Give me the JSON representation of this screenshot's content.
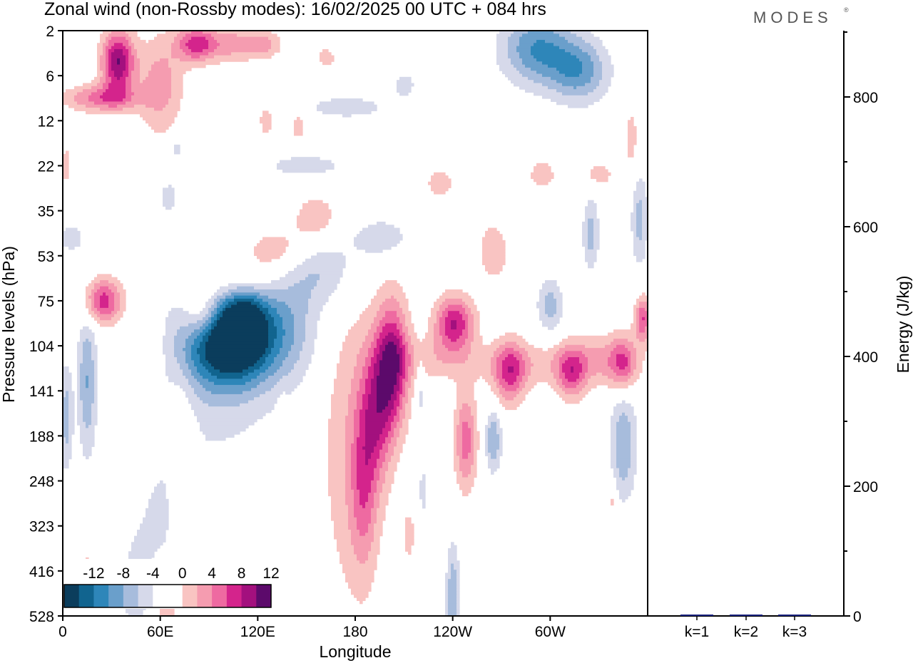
{
  "title": "Zonal wind (non-Rossby modes):  16/02/2025  00 UTC  + 084 hrs",
  "brand": "MODES",
  "brand_mark": "®",
  "chart_data": [
    {
      "type": "heatmap",
      "title": "Zonal wind (non-Rossby modes):  16/02/2025  00 UTC  + 084 hrs",
      "xlabel": "Longitude",
      "ylabel": "Pressure levels (hPa)",
      "x_ticks": [
        "0",
        "60E",
        "120E",
        "180",
        "120W",
        "60W"
      ],
      "x_tick_values": [
        0,
        60,
        120,
        180,
        240,
        300
      ],
      "xlim": [
        0,
        360
      ],
      "y_ticks": [
        "2",
        "6",
        "12",
        "22",
        "35",
        "53",
        "75",
        "104",
        "141",
        "188",
        "248",
        "323",
        "416",
        "528"
      ],
      "y_reversed": true,
      "colorbar": {
        "labels": [
          "-12",
          "-8",
          "-4",
          "0",
          "4",
          "8",
          "12"
        ],
        "colors": [
          "#0b3d5c",
          "#11648f",
          "#2e86b9",
          "#6a9fcb",
          "#a7bcdc",
          "#d6d9ea",
          "#ffffff",
          "#ffffff",
          "#f9c4c2",
          "#f59cb0",
          "#ee6aa1",
          "#d4248c",
          "#a3107e",
          "#5c0a6b"
        ]
      },
      "features": [
        {
          "lon": 100,
          "lev": 6.9,
          "w": 26,
          "h": 1.0,
          "v": -14,
          "tilt": -0.05
        },
        {
          "lon": 112,
          "lev": 6.4,
          "w": 14,
          "h": 0.9,
          "v": -8
        },
        {
          "lon": 136,
          "lev": 6.6,
          "w": 22,
          "h": 1.2,
          "v": -5
        },
        {
          "lon": 160,
          "lev": 5.3,
          "w": 22,
          "h": 0.8,
          "v": -4
        },
        {
          "lon": 195,
          "lev": 4.6,
          "w": 20,
          "h": 0.5,
          "v": -3.5
        },
        {
          "lon": 15,
          "lev": 7.8,
          "w": 6,
          "h": 1.6,
          "v": -6
        },
        {
          "lon": 2,
          "lev": 8.6,
          "w": 4,
          "h": 1.2,
          "v": -5
        },
        {
          "lon": 265,
          "lev": 9.1,
          "w": 5,
          "h": 0.7,
          "v": -6
        },
        {
          "lon": 292,
          "lev": 0.4,
          "w": 22,
          "h": 0.8,
          "v": -8
        },
        {
          "lon": 318,
          "lev": 0.9,
          "w": 18,
          "h": 0.7,
          "v": -7
        },
        {
          "lon": 345,
          "lev": 9.2,
          "w": 8,
          "h": 1.2,
          "v": -6
        },
        {
          "lon": 355,
          "lev": 4.2,
          "w": 5,
          "h": 1.0,
          "v": -5
        },
        {
          "lon": 325,
          "lev": 4.5,
          "w": 5,
          "h": 0.8,
          "v": -5
        },
        {
          "lon": 65,
          "lev": 10.8,
          "w": 18,
          "h": 1.4,
          "v": -3
        },
        {
          "lon": 240,
          "lev": 12.6,
          "w": 4,
          "h": 1.2,
          "v": -6
        },
        {
          "lon": 175,
          "lev": 1.7,
          "w": 30,
          "h": 0.3,
          "v": -3
        },
        {
          "lon": 150,
          "lev": 3.0,
          "w": 30,
          "h": 0.3,
          "v": -3
        },
        {
          "lon": 65,
          "lev": 3.7,
          "w": 6,
          "h": 0.4,
          "v": -3
        },
        {
          "lon": 5,
          "lev": 4.6,
          "w": 10,
          "h": 0.4,
          "v": -2.8
        },
        {
          "lon": 300,
          "lev": 6.1,
          "w": 8,
          "h": 0.6,
          "v": -5
        },
        {
          "lon": 210,
          "lev": 1.2,
          "w": 8,
          "h": 0.3,
          "v": -3
        },
        {
          "lon": 70,
          "lev": 2.6,
          "w": 4,
          "h": 0.3,
          "v": -3
        },
        {
          "lon": 45,
          "lev": 12.5,
          "w": 10,
          "h": 1.3,
          "v": -3
        },
        {
          "lon": 222,
          "lev": 10.2,
          "w": 3,
          "h": 0.6,
          "v": -3
        },
        {
          "lon": 95,
          "lev": 7.8,
          "w": 40,
          "h": 2.4,
          "v": -2.5
        },
        {
          "lon": 220,
          "lev": 8.0,
          "w": 3,
          "h": 0.8,
          "v": -3
        },
        {
          "lon": 34,
          "lev": 0.7,
          "w": 10,
          "h": 0.7,
          "v": 12
        },
        {
          "lon": 24,
          "lev": 1.5,
          "w": 22,
          "h": 0.3,
          "v": 7
        },
        {
          "lon": 60,
          "lev": 1.2,
          "w": 14,
          "h": 1.1,
          "v": 5
        },
        {
          "lon": 82,
          "lev": 0.3,
          "w": 12,
          "h": 0.4,
          "v": 9
        },
        {
          "lon": 105,
          "lev": 0.3,
          "w": 16,
          "h": 0.4,
          "v": 5
        },
        {
          "lon": 125,
          "lev": 0.3,
          "w": 10,
          "h": 0.3,
          "v": 4
        },
        {
          "lon": 25,
          "lev": 6.0,
          "w": 12,
          "h": 0.5,
          "v": 9
        },
        {
          "lon": 86,
          "lev": 6.3,
          "w": 12,
          "h": 0.6,
          "v": 6
        },
        {
          "lon": 110,
          "lev": 5.6,
          "w": 20,
          "h": 0.5,
          "v": 5
        },
        {
          "lon": 130,
          "lev": 4.9,
          "w": 20,
          "h": 0.5,
          "v": 4
        },
        {
          "lon": 155,
          "lev": 4.2,
          "w": 15,
          "h": 0.6,
          "v": 3.5
        },
        {
          "lon": 55,
          "lev": 7.2,
          "w": 6,
          "h": 2.0,
          "v": 3
        },
        {
          "lon": 73,
          "lev": 10.3,
          "w": 8,
          "h": 2.3,
          "v": 4
        },
        {
          "lon": 203,
          "lev": 7.4,
          "w": 10,
          "h": 1.4,
          "v": 11
        },
        {
          "lon": 193,
          "lev": 8.5,
          "w": 10,
          "h": 1.5,
          "v": 7
        },
        {
          "lon": 185,
          "lev": 10.2,
          "w": 8,
          "h": 1.8,
          "v": 5
        },
        {
          "lon": 178,
          "lev": 9.2,
          "w": 20,
          "h": 3.6,
          "v": 3.6
        },
        {
          "lon": 241,
          "lev": 6.5,
          "w": 12,
          "h": 0.6,
          "v": 10
        },
        {
          "lon": 275,
          "lev": 7.6,
          "w": 10,
          "h": 0.7,
          "v": 8
        },
        {
          "lon": 248,
          "lev": 9.1,
          "w": 7,
          "h": 1.1,
          "v": 7
        },
        {
          "lon": 313,
          "lev": 7.6,
          "w": 9,
          "h": 0.6,
          "v": 7
        },
        {
          "lon": 345,
          "lev": 7.4,
          "w": 8,
          "h": 0.6,
          "v": 6
        },
        {
          "lon": 357,
          "lev": 6.4,
          "w": 5,
          "h": 0.5,
          "v": 8
        },
        {
          "lon": 228,
          "lev": 7.3,
          "w": 28,
          "h": 0.5,
          "v": 3
        },
        {
          "lon": 296,
          "lev": 7.4,
          "w": 40,
          "h": 0.5,
          "v": 3
        },
        {
          "lon": 335,
          "lev": 7.3,
          "w": 20,
          "h": 0.6,
          "v": 3.5
        },
        {
          "lon": 265,
          "lev": 4.9,
          "w": 10,
          "h": 0.7,
          "v": 3.5
        },
        {
          "lon": 295,
          "lev": 3.2,
          "w": 10,
          "h": 0.4,
          "v": 3
        },
        {
          "lon": 330,
          "lev": 3.2,
          "w": 10,
          "h": 0.3,
          "v": 3
        },
        {
          "lon": 232,
          "lev": 3.4,
          "w": 10,
          "h": 0.4,
          "v": 3
        },
        {
          "lon": 350,
          "lev": 2.4,
          "w": 4,
          "h": 0.8,
          "v": 3
        },
        {
          "lon": 62,
          "lev": 12.9,
          "w": 8,
          "h": 0.9,
          "v": 3
        },
        {
          "lon": 15,
          "lev": 12.2,
          "w": 3,
          "h": 0.8,
          "v": 3
        },
        {
          "lon": 135,
          "lev": 8.9,
          "w": 3,
          "h": 0.7,
          "v": 3
        },
        {
          "lon": 213,
          "lev": 11.2,
          "w": 4,
          "h": 0.6,
          "v": 3
        },
        {
          "lon": 338,
          "lev": 10.4,
          "w": 3,
          "h": 0.5,
          "v": 3
        },
        {
          "lon": 2,
          "lev": 3.0,
          "w": 3,
          "h": 0.5,
          "v": 3
        },
        {
          "lon": 162,
          "lev": 0.6,
          "w": 5,
          "h": 0.2,
          "v": 4
        },
        {
          "lon": 125,
          "lev": 2.0,
          "w": 5,
          "h": 0.4,
          "v": 3
        },
        {
          "lon": 145,
          "lev": 2.1,
          "w": 5,
          "h": 0.4,
          "v": 3
        }
      ],
      "lon_range": [
        0,
        360
      ]
    },
    {
      "type": "bar",
      "categories": [
        "k=1",
        "k=2",
        "k=3"
      ],
      "values": [
        2,
        1,
        1
      ],
      "ylabel": "Energy (J/kg)",
      "ylim": [
        0,
        900
      ],
      "y_ticks": [
        0,
        200,
        400,
        600,
        800
      ],
      "bar_color": "#1a237e"
    }
  ]
}
